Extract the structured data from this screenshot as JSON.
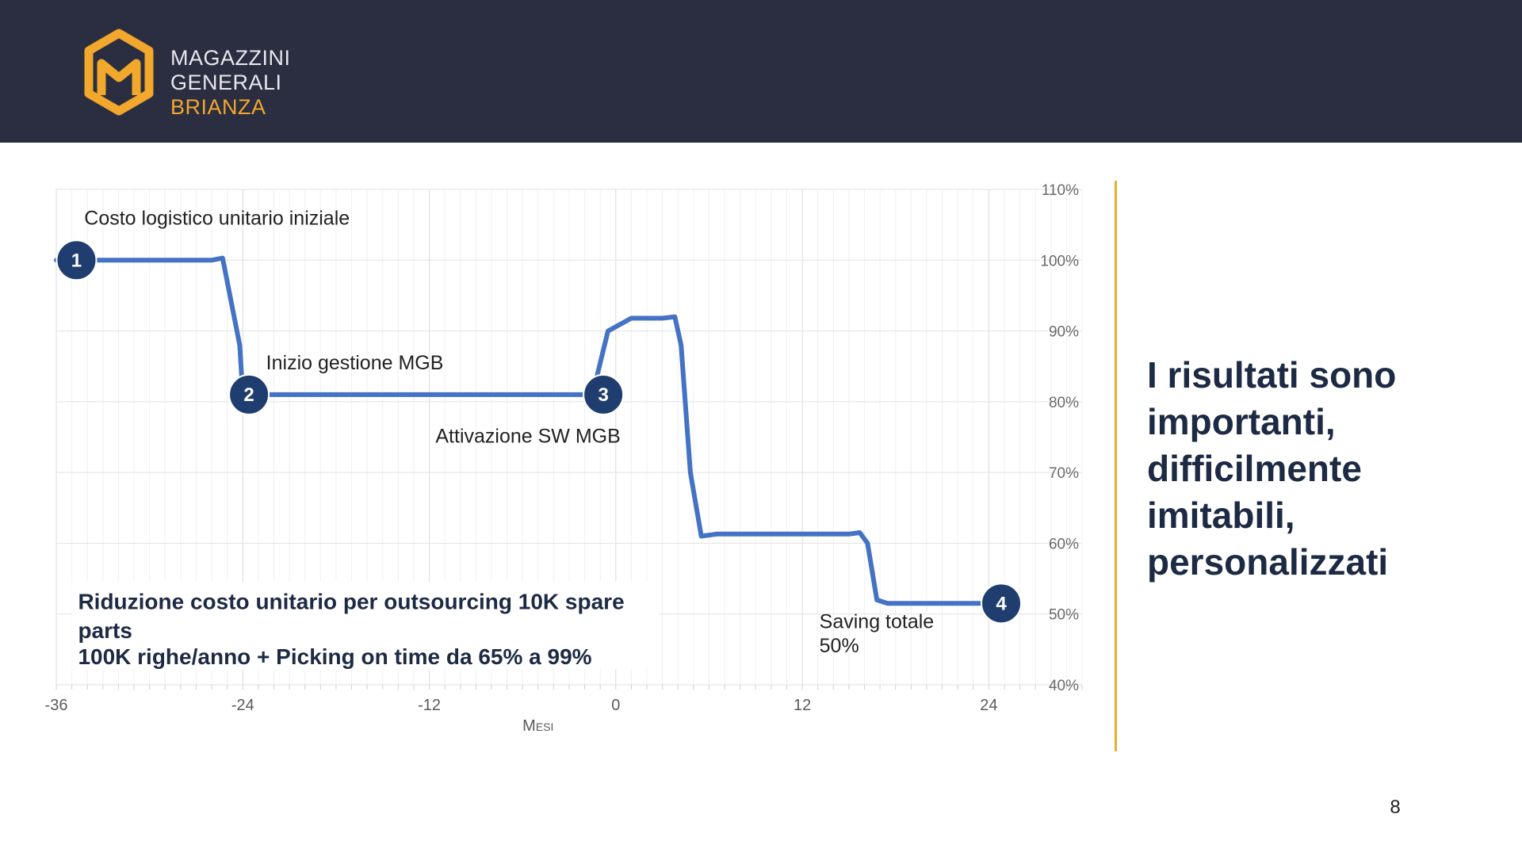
{
  "logo": {
    "line1": "MAGAZZINI",
    "line2": "GENERALI",
    "line3": "BRIANZA",
    "icon": "mgb-hexagon-logo-icon"
  },
  "colors": {
    "header_bg": "#2b2e40",
    "brand_orange": "#f2a72d",
    "line_blue": "#4472c4",
    "marker_navy": "#1f3d6e",
    "divider_gold": "#e7ad2c",
    "text_navy": "#1d2a44"
  },
  "chart_data": {
    "type": "line",
    "xlabel": "Mesi",
    "ylabel": "",
    "xlim": [
      -36,
      30
    ],
    "ylim": [
      40,
      110
    ],
    "x_ticks": [
      -36,
      -24,
      -12,
      0,
      12,
      24
    ],
    "x_tick_labels": [
      "-36",
      "-24",
      "-12",
      "0",
      "12",
      "24"
    ],
    "y_ticks": [
      40,
      50,
      60,
      70,
      80,
      90,
      100,
      110
    ],
    "y_tick_labels": [
      "40%",
      "50%",
      "60%",
      "70%",
      "80%",
      "90%",
      "100%",
      "110%"
    ],
    "y_axis_side": "right",
    "grid": true,
    "series": [
      {
        "x": [
          -36,
          -26,
          -25.3,
          -24.2,
          -24,
          -2.5,
          -1.5,
          -0.5,
          1,
          3,
          3.8,
          4.2,
          4.8,
          5.5,
          6.5,
          15,
          15.7,
          16.2,
          16.8,
          17.5,
          25
        ],
        "y": [
          100,
          100,
          100.3,
          88,
          81,
          81,
          81,
          90,
          91.8,
          91.8,
          92,
          88,
          70,
          61,
          61.3,
          61.3,
          61.5,
          60,
          52,
          51.5,
          51.5
        ]
      }
    ],
    "markers": [
      {
        "label": "1",
        "x": -34.7,
        "y": 100
      },
      {
        "label": "2",
        "x": -23.6,
        "y": 81
      },
      {
        "label": "3",
        "x": -0.8,
        "y": 81
      },
      {
        "label": "4",
        "x": 24.8,
        "y": 51.5
      }
    ],
    "annotations": [
      {
        "text": "Costo logistico unitario iniziale",
        "x": -34.2,
        "y": 105
      },
      {
        "text": "Inizio gestione MGB",
        "x": -22.5,
        "y": 84.6
      },
      {
        "text": "Attivazione SW MGB",
        "x": -11.6,
        "y": 74.2
      },
      {
        "text": "Saving totale",
        "x": 13.1,
        "y": 48
      },
      {
        "text": "50%",
        "x": 13.1,
        "y": 44.6
      }
    ],
    "callout_lines": [
      "Riduzione costo unitario per outsourcing 10K spare",
      "parts",
      "100K righe/anno + Picking on time da 65% a 99%"
    ]
  },
  "side_text": [
    "I risultati sono",
    "importanti,",
    "difficilmente",
    "imitabili,",
    "personalizzati"
  ],
  "page_number": "8"
}
